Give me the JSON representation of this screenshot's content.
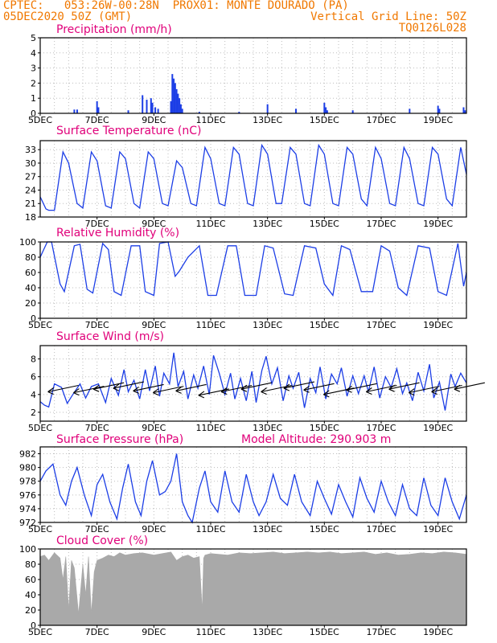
{
  "header": {
    "line1_left": "CPTEC:   053:26W-00:28N  PROX01: MONTE DOURADO (PA)",
    "line2_left": "05DEC2020 50Z (GMT)",
    "line2_right": "Vertical Grid Line: 50Z",
    "line3_right": "TQ0126L028"
  },
  "colors": {
    "header": "#f07800",
    "title": "#e0007a",
    "series": "#1c3ee6",
    "cloud": "#a9a9a9",
    "grid": "#bdbdbd"
  },
  "chart_data": [
    {
      "id": "precip",
      "type": "bar",
      "title": "Precipitation (mm/h)",
      "xlabels": [
        "5DEC",
        "7DEC",
        "9DEC",
        "11DEC",
        "13DEC",
        "15DEC",
        "17DEC",
        "19DEC"
      ],
      "yticks": [
        0,
        1,
        2,
        3,
        4,
        5
      ],
      "ylim": [
        0,
        5
      ],
      "xlim": [
        5,
        20
      ],
      "grid": true,
      "points": [
        [
          6.2,
          0.25
        ],
        [
          6.3,
          0.25
        ],
        [
          7.0,
          0.8
        ],
        [
          7.05,
          0.4
        ],
        [
          8.1,
          0.2
        ],
        [
          8.6,
          1.2
        ],
        [
          8.75,
          0.9
        ],
        [
          8.9,
          1.0
        ],
        [
          8.95,
          0.7
        ],
        [
          9.05,
          0.4
        ],
        [
          9.15,
          0.3
        ],
        [
          9.6,
          0.8
        ],
        [
          9.65,
          2.6
        ],
        [
          9.7,
          2.3
        ],
        [
          9.75,
          2.0
        ],
        [
          9.8,
          1.6
        ],
        [
          9.85,
          1.3
        ],
        [
          9.9,
          1.0
        ],
        [
          9.95,
          0.6
        ],
        [
          10.0,
          0.3
        ],
        [
          10.6,
          0.1
        ],
        [
          12.0,
          0.1
        ],
        [
          13.0,
          0.6
        ],
        [
          14.0,
          0.3
        ],
        [
          15.0,
          0.7
        ],
        [
          15.05,
          0.4
        ],
        [
          15.1,
          0.2
        ],
        [
          16.0,
          0.2
        ],
        [
          18.0,
          0.3
        ],
        [
          19.0,
          0.5
        ],
        [
          19.05,
          0.3
        ],
        [
          19.9,
          0.4
        ],
        [
          19.95,
          0.2
        ]
      ]
    },
    {
      "id": "temp",
      "type": "line",
      "title": "Surface Temperature (nC)",
      "xlabels": [
        "7DEC",
        "9DEC",
        "11DEC",
        "13DEC",
        "15DEC",
        "17DEC",
        "19DEC"
      ],
      "yticks": [
        18,
        21,
        24,
        27,
        30,
        33
      ],
      "ylim": [
        18,
        35
      ],
      "xlim": [
        5,
        20
      ],
      "grid": true,
      "x": [
        5.0,
        5.2,
        5.3,
        5.5,
        5.8,
        6.0,
        6.3,
        6.5,
        6.8,
        7.0,
        7.3,
        7.5,
        7.8,
        8.0,
        8.3,
        8.5,
        8.8,
        9.0,
        9.3,
        9.5,
        9.8,
        10.0,
        10.3,
        10.5,
        10.8,
        11.0,
        11.3,
        11.5,
        11.8,
        12.0,
        12.3,
        12.5,
        12.8,
        13.0,
        13.3,
        13.5,
        13.8,
        14.0,
        14.3,
        14.5,
        14.8,
        15.0,
        15.3,
        15.5,
        15.8,
        16.0,
        16.3,
        16.5,
        16.8,
        17.0,
        17.3,
        17.5,
        17.8,
        18.0,
        18.3,
        18.5,
        18.8,
        19.0,
        19.3,
        19.5,
        19.8,
        20.0
      ],
      "y": [
        22.5,
        19.8,
        19.5,
        19.5,
        32.5,
        30,
        21,
        20,
        32.5,
        30.5,
        20.5,
        20,
        32.5,
        31,
        21,
        20,
        32.5,
        31,
        21,
        20.5,
        30.5,
        29,
        21,
        20.5,
        33.5,
        31,
        21,
        20.5,
        33.5,
        32,
        21,
        20.5,
        34,
        32,
        21,
        21,
        33.5,
        32,
        21,
        20.5,
        34,
        32,
        21,
        20.5,
        33.5,
        32,
        22,
        20.5,
        33.5,
        31,
        21,
        20.5,
        33.5,
        31,
        21,
        20.5,
        33.5,
        32,
        22,
        20.5,
        33.5,
        27.5
      ]
    },
    {
      "id": "rh",
      "type": "line",
      "title": "Relative Humidity (%)",
      "xlabels": [
        "5DEC",
        "7DEC",
        "9DEC",
        "11DEC",
        "13DEC",
        "15DEC",
        "17DEC",
        "19DEC"
      ],
      "yticks": [
        0,
        20,
        40,
        60,
        80,
        100
      ],
      "ylim": [
        0,
        100
      ],
      "xlim": [
        5,
        20
      ],
      "grid": true,
      "x": [
        5.0,
        5.1,
        5.25,
        5.4,
        5.7,
        5.85,
        6.2,
        6.4,
        6.65,
        6.85,
        7.2,
        7.4,
        7.6,
        7.85,
        8.2,
        8.5,
        8.7,
        9.0,
        9.2,
        9.5,
        9.75,
        9.9,
        10.2,
        10.6,
        10.9,
        11.2,
        11.6,
        11.9,
        12.2,
        12.6,
        12.9,
        13.2,
        13.6,
        13.9,
        14.3,
        14.7,
        15.0,
        15.3,
        15.6,
        15.9,
        16.3,
        16.7,
        17.0,
        17.3,
        17.6,
        17.9,
        18.3,
        18.7,
        19.0,
        19.3,
        19.7,
        19.9,
        20.0
      ],
      "y": [
        80,
        88,
        100,
        100,
        45,
        35,
        95,
        97,
        38,
        33,
        98,
        90,
        35,
        30,
        95,
        95,
        35,
        30,
        98,
        100,
        55,
        62,
        80,
        95,
        30,
        30,
        95,
        95,
        30,
        30,
        95,
        92,
        32,
        30,
        95,
        92,
        45,
        30,
        95,
        90,
        35,
        35,
        95,
        88,
        40,
        30,
        95,
        92,
        35,
        30,
        98,
        42,
        60
      ]
    },
    {
      "id": "wind",
      "type": "line",
      "title": "Surface Wind (m/s)",
      "xlabels": [
        "5DEC",
        "7DEC",
        "9DEC",
        "11DEC",
        "13DEC",
        "15DEC",
        "17DEC",
        "19DEC"
      ],
      "yticks": [
        2,
        4,
        6,
        8
      ],
      "ylim": [
        1,
        9.5
      ],
      "xlim": [
        5,
        20
      ],
      "grid": true,
      "x": [
        5.0,
        5.15,
        5.3,
        5.5,
        5.75,
        5.95,
        6.15,
        6.4,
        6.6,
        6.8,
        7.05,
        7.3,
        7.5,
        7.75,
        7.95,
        8.1,
        8.3,
        8.5,
        8.7,
        8.85,
        9.05,
        9.2,
        9.35,
        9.55,
        9.7,
        9.85,
        10.05,
        10.2,
        10.4,
        10.55,
        10.75,
        10.95,
        11.1,
        11.3,
        11.5,
        11.7,
        11.85,
        12.05,
        12.25,
        12.45,
        12.6,
        12.8,
        12.95,
        13.15,
        13.35,
        13.55,
        13.75,
        13.9,
        14.1,
        14.3,
        14.5,
        14.7,
        14.85,
        15.05,
        15.25,
        15.45,
        15.6,
        15.8,
        16.0,
        16.2,
        16.4,
        16.55,
        16.75,
        16.95,
        17.15,
        17.35,
        17.55,
        17.75,
        17.9,
        18.1,
        18.3,
        18.5,
        18.7,
        18.85,
        19.05,
        19.25,
        19.45,
        19.6,
        19.8,
        20.0
      ],
      "y": [
        3.2,
        2.8,
        2.6,
        5.2,
        4.8,
        3.0,
        4.0,
        5.2,
        3.6,
        4.9,
        5.2,
        3.1,
        5.8,
        3.9,
        6.8,
        4.3,
        5.6,
        3.5,
        6.8,
        4.4,
        7.2,
        3.8,
        6.4,
        5.2,
        8.7,
        4.9,
        6.6,
        3.5,
        6.2,
        4.7,
        7.2,
        4.0,
        8.4,
        6.4,
        4.0,
        6.4,
        3.5,
        5.8,
        3.3,
        6.6,
        3.1,
        6.7,
        8.3,
        5.2,
        7.0,
        3.3,
        6.1,
        4.7,
        6.5,
        2.5,
        5.8,
        4.2,
        7.1,
        3.5,
        6.3,
        5.2,
        7.0,
        3.8,
        6.1,
        4.1,
        6.1,
        4.3,
        7.1,
        3.6,
        6.0,
        4.8,
        6.9,
        4.1,
        5.3,
        3.3,
        6.5,
        4.4,
        7.4,
        3.6,
        5.4,
        2.2,
        6.3,
        4.9,
        6.4,
        5.3
      ],
      "arrows_x": [
        5.3,
        6.2,
        6.9,
        7.6,
        8.3,
        9.0,
        9.8,
        10.6,
        11.4,
        12.1,
        12.8,
        13.6,
        14.3,
        15.0,
        15.8,
        16.5,
        17.3,
        18.0,
        18.8,
        19.6
      ],
      "arrows_y": [
        4.3,
        4.2,
        4.6,
        4.7,
        4.4,
        4.2,
        4.4,
        3.9,
        4.3,
        4.6,
        4.3,
        4.7,
        4.5,
        4.0,
        4.5,
        4.3,
        4.6,
        4.2,
        4.3,
        4.6
      ]
    },
    {
      "id": "pres",
      "type": "line",
      "title": "Surface Pressure (hPa)",
      "annotation": "Model Altitude: 290.903 m",
      "xlabels": [
        "5DEC",
        "7DEC",
        "9DEC",
        "11DEC",
        "13DEC",
        "15DEC",
        "17DEC",
        "19DEC"
      ],
      "yticks": [
        972,
        974,
        976,
        978,
        980,
        982
      ],
      "ylim": [
        972,
        983
      ],
      "xlim": [
        5,
        20
      ],
      "grid": true,
      "x": [
        5.0,
        5.2,
        5.45,
        5.7,
        5.9,
        6.1,
        6.3,
        6.55,
        6.8,
        7.0,
        7.2,
        7.45,
        7.7,
        7.9,
        8.1,
        8.35,
        8.55,
        8.75,
        8.95,
        9.2,
        9.4,
        9.6,
        9.8,
        10.0,
        10.2,
        10.35,
        10.6,
        10.8,
        11.0,
        11.25,
        11.5,
        11.75,
        12.0,
        12.25,
        12.5,
        12.7,
        12.95,
        13.2,
        13.45,
        13.7,
        13.95,
        14.2,
        14.5,
        14.75,
        15.0,
        15.25,
        15.5,
        15.75,
        16.0,
        16.25,
        16.5,
        16.75,
        17.0,
        17.25,
        17.5,
        17.75,
        18.0,
        18.25,
        18.5,
        18.75,
        19.0,
        19.25,
        19.5,
        19.75,
        20.0
      ],
      "y": [
        978,
        979.5,
        980.5,
        976,
        974.5,
        978,
        980,
        976,
        973,
        977.5,
        979,
        975,
        972.5,
        977,
        980.5,
        975,
        973,
        978,
        981,
        976,
        976.5,
        978,
        982,
        975,
        973,
        972,
        977,
        979.5,
        975,
        973.5,
        979.5,
        975,
        973.5,
        979,
        975,
        973,
        975,
        979,
        975.5,
        974.5,
        979,
        975,
        973,
        978,
        975.5,
        973.2,
        977.5,
        975,
        972.8,
        978.5,
        975.5,
        973.5,
        978,
        975,
        973,
        977.5,
        974,
        973,
        978.5,
        974.5,
        973,
        978.5,
        975,
        972.5,
        976
      ]
    },
    {
      "id": "cloud",
      "type": "area",
      "title": "Cloud Cover (%)",
      "xlabels": [
        "5DEC",
        "7DEC",
        "9DEC",
        "11DEC",
        "13DEC",
        "15DEC",
        "17DEC",
        "19DEC"
      ],
      "yticks": [
        0,
        20,
        40,
        60,
        80,
        100
      ],
      "ylim": [
        0,
        100
      ],
      "xlim": [
        5,
        20
      ],
      "grid": true,
      "x": [
        5.0,
        5.15,
        5.3,
        5.5,
        5.7,
        5.8,
        5.9,
        6.0,
        6.1,
        6.2,
        6.35,
        6.5,
        6.6,
        6.7,
        6.8,
        6.9,
        7.0,
        7.2,
        7.4,
        7.6,
        7.8,
        8.0,
        8.3,
        8.6,
        9.0,
        9.3,
        9.6,
        9.8,
        10.0,
        10.2,
        10.4,
        10.6,
        10.7,
        10.75,
        10.8,
        11.0,
        11.3,
        11.6,
        12.0,
        12.4,
        12.8,
        13.2,
        13.6,
        14.0,
        14.4,
        14.8,
        15.2,
        15.6,
        16.0,
        16.4,
        16.8,
        17.2,
        17.6,
        18.0,
        18.4,
        18.8,
        19.2,
        19.6,
        20.0
      ],
      "y": [
        90,
        92,
        85,
        95,
        88,
        60,
        90,
        20,
        85,
        75,
        15,
        80,
        40,
        90,
        15,
        70,
        85,
        88,
        92,
        90,
        95,
        92,
        94,
        95,
        92,
        94,
        96,
        85,
        90,
        92,
        88,
        90,
        20,
        88,
        92,
        94,
        93,
        92,
        95,
        94,
        95,
        96,
        94,
        95,
        96,
        95,
        96,
        94,
        95,
        96,
        93,
        95,
        92,
        93,
        95,
        94,
        96,
        95,
        93
      ]
    }
  ]
}
